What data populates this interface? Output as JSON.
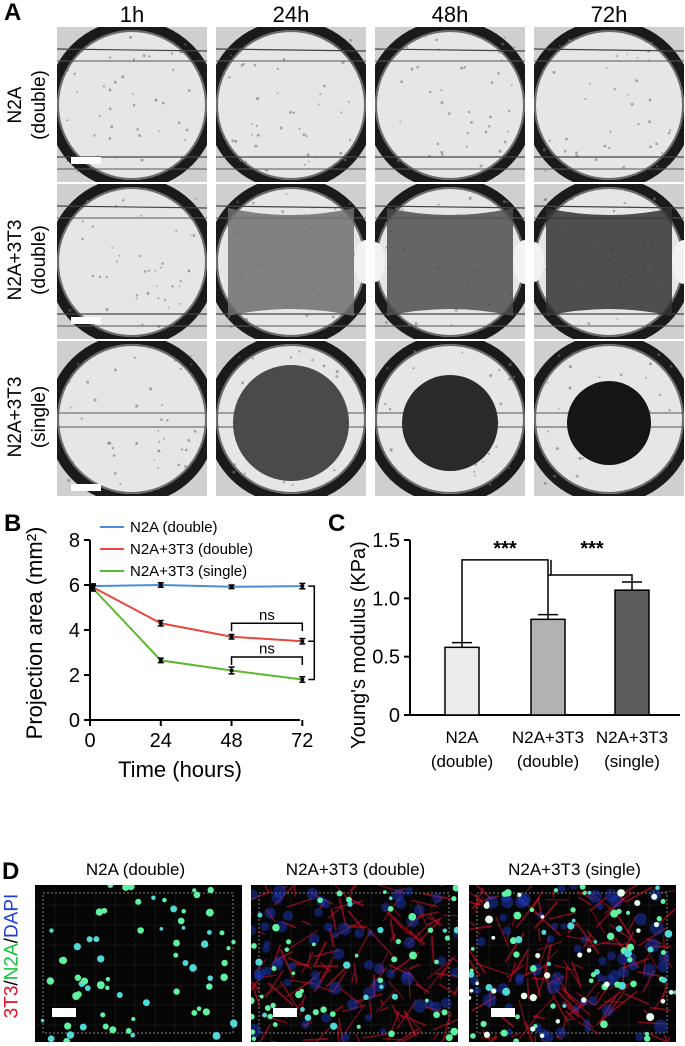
{
  "panels": {
    "a": "A",
    "b": "B",
    "c": "C",
    "d": "D"
  },
  "panel_a": {
    "timepoints": [
      "1h",
      "24h",
      "48h",
      "72h"
    ],
    "rows": [
      {
        "line1": "N2A",
        "line2": "(double)"
      },
      {
        "line1": "N2A+3T3",
        "line2": "(double)"
      },
      {
        "line1": "N2A+3T3",
        "line2": "(single)"
      }
    ]
  },
  "chart_data": [
    {
      "type": "line",
      "ylabel": "Projection area (mm²)",
      "xlabel": "Time (hours)",
      "x": [
        1,
        24,
        48,
        72
      ],
      "xticks": [
        0,
        24,
        48,
        72
      ],
      "yticks": [
        0,
        2,
        4,
        6,
        8
      ],
      "ylim": [
        0,
        8
      ],
      "xlim": [
        0,
        78
      ],
      "legend_position": "top",
      "series": [
        {
          "name": "N2A (double)",
          "color": "#4a8fd0",
          "values": [
            5.95,
            6.0,
            5.92,
            5.95
          ],
          "err": [
            0.1,
            0.1,
            0.08,
            0.12
          ]
        },
        {
          "name": "N2A+3T3 (double)",
          "color": "#e8473d",
          "values": [
            5.9,
            4.3,
            3.7,
            3.5
          ],
          "err": [
            0.12,
            0.12,
            0.1,
            0.12
          ]
        },
        {
          "name": "N2A+3T3 (single)",
          "color": "#5cb82e",
          "values": [
            5.85,
            2.65,
            2.2,
            1.8
          ],
          "err": [
            0.12,
            0.1,
            0.15,
            0.12
          ]
        }
      ],
      "annotations": {
        "ns1": "ns",
        "ns2": "ns",
        "sig1": "***",
        "sig2": "***"
      }
    },
    {
      "type": "bar",
      "ylabel": "Young's modulus (KPa)",
      "categories": [
        {
          "line1": "N2A",
          "line2": "(double)"
        },
        {
          "line1": "N2A+3T3",
          "line2": "(double)"
        },
        {
          "line1": "N2A+3T3",
          "line2": "(single)"
        }
      ],
      "values": [
        0.58,
        0.82,
        1.07
      ],
      "err": [
        0.04,
        0.04,
        0.07
      ],
      "colors": [
        "#ececec",
        "#b3b3b3",
        "#5c5c5c"
      ],
      "ylim": [
        0,
        1.5
      ],
      "yticks": [
        "0",
        "0.5",
        "1.0",
        "1.5"
      ],
      "annotations": {
        "sig1": "***",
        "sig2": "***"
      }
    }
  ],
  "panel_d": {
    "titles": [
      "N2A (double)",
      "N2A+3T3 (double)",
      "N2A+3T3 (single)"
    ],
    "stain_label": {
      "part1": "3T3",
      "sep1": "/",
      "part2": "N2A",
      "sep2": "/",
      "part3": "DAPI"
    },
    "stain_colors": {
      "part1": "#e0102a",
      "part2": "#16c23a",
      "part3": "#1f3fd0"
    }
  }
}
